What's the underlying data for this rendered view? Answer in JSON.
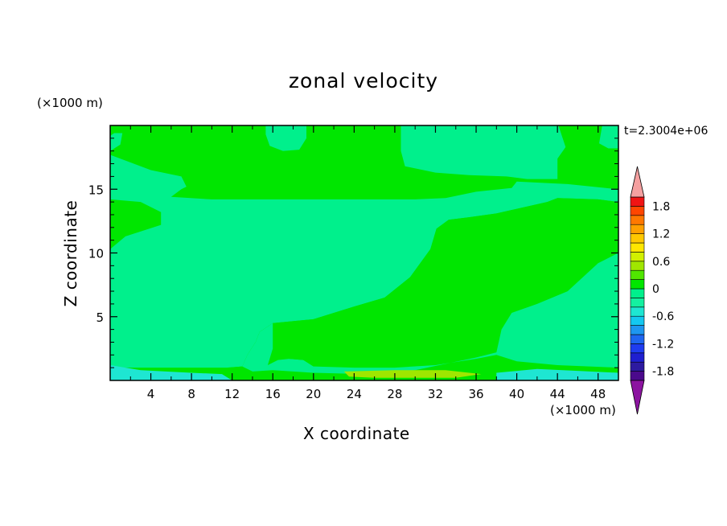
{
  "chart_data": {
    "type": "heatmap",
    "title": "zonal velocity",
    "xlabel": "X coordinate",
    "ylabel": "Z coordinate",
    "x_unit": "(×1000 m)",
    "y_unit": "(×1000 m)",
    "time_label": "t=2.3004e+06",
    "xlim": [
      0,
      50
    ],
    "ylim": [
      0,
      20
    ],
    "x_ticks": [
      4,
      8,
      12,
      16,
      20,
      24,
      28,
      32,
      36,
      40,
      44,
      48
    ],
    "y_ticks": [
      5,
      10,
      15
    ],
    "colorbar": {
      "levels": [
        -2.0,
        -1.8,
        -1.6,
        -1.4,
        -1.2,
        -1.0,
        -0.8,
        -0.6,
        -0.4,
        -0.2,
        0,
        0.2,
        0.4,
        0.6,
        0.8,
        1.0,
        1.2,
        1.4,
        1.6,
        1.8,
        2.0
      ],
      "colors": [
        "#4b0a8c",
        "#2d1aa0",
        "#1f1fd0",
        "#1e3cf0",
        "#1e66f0",
        "#1e96f0",
        "#14c8f0",
        "#1ee6d2",
        "#14f0a0",
        "#00f08c",
        "#00e600",
        "#50e600",
        "#a0e600",
        "#d2f000",
        "#ffe600",
        "#ffc800",
        "#ffa000",
        "#ff7800",
        "#ff4600",
        "#f01414"
      ],
      "under_color": "#8c14a0",
      "over_color": "#f5a0a0",
      "tick_labels": [
        "1.8",
        "1.2",
        "0.6",
        "0",
        "-0.6",
        "-1.2",
        "-1.8"
      ],
      "tick_values": [
        1.8,
        1.2,
        0.6,
        0,
        -0.6,
        -1.2,
        -1.8
      ]
    },
    "field_colors": {
      "positive_weak": "#00e600",
      "negative_weak": "#00f08c",
      "negative_mid": "#1ee6d2",
      "positive_mid": "#a0e600"
    },
    "regions": [
      {
        "value": "negative_weak",
        "boundary": [
          [
            0,
            19.2
          ],
          [
            0.4,
            19.4
          ],
          [
            1.2,
            19.4
          ],
          [
            1,
            18.5
          ],
          [
            0,
            18
          ]
        ]
      },
      {
        "value": "negative_weak",
        "boundary": [
          [
            15.3,
            20
          ],
          [
            19.3,
            20
          ],
          [
            19.3,
            19
          ],
          [
            18.6,
            18.1
          ],
          [
            17,
            18
          ],
          [
            15.7,
            18.4
          ],
          [
            15.3,
            19.3
          ]
        ]
      },
      {
        "value": "negative_weak",
        "boundary": [
          [
            28.6,
            20
          ],
          [
            44.1,
            20
          ],
          [
            44.8,
            18.3
          ],
          [
            44,
            17.4
          ],
          [
            44,
            15.8
          ],
          [
            41,
            15.8
          ],
          [
            39,
            16
          ],
          [
            35.3,
            16.1
          ],
          [
            32,
            16.3
          ],
          [
            29,
            16.8
          ],
          [
            28.6,
            18
          ]
        ]
      },
      {
        "value": "negative_weak",
        "boundary": [
          [
            48.4,
            20
          ],
          [
            48.1,
            18.6
          ],
          [
            49,
            18.2
          ],
          [
            50,
            18.2
          ],
          [
            50,
            20
          ]
        ]
      },
      {
        "value": "negative_weak",
        "boundary": [
          [
            0,
            17.7
          ],
          [
            2,
            17.1
          ],
          [
            4,
            16.5
          ],
          [
            7,
            16
          ],
          [
            7.5,
            15.2
          ],
          [
            7,
            15
          ],
          [
            6,
            14.4
          ],
          [
            10,
            14.2
          ],
          [
            30,
            14.2
          ],
          [
            33,
            14.3
          ],
          [
            36,
            14.8
          ],
          [
            39.5,
            15.1
          ],
          [
            40,
            15.6
          ],
          [
            45,
            15.4
          ],
          [
            50,
            15
          ],
          [
            50,
            14
          ],
          [
            48,
            14.2
          ],
          [
            44,
            14.3
          ],
          [
            43,
            14
          ],
          [
            38,
            13.1
          ],
          [
            35.3,
            12.8
          ],
          [
            33.3,
            12.6
          ],
          [
            32.1,
            11.9
          ],
          [
            31.5,
            10.3
          ],
          [
            29.5,
            8.1
          ],
          [
            27,
            6.5
          ],
          [
            24,
            5.8
          ],
          [
            20,
            4.8
          ],
          [
            16,
            4.5
          ],
          [
            14.7,
            3.8
          ],
          [
            14.3,
            3
          ],
          [
            13.5,
            2
          ],
          [
            13,
            1.1
          ],
          [
            11.5,
            1
          ],
          [
            3,
            1
          ],
          [
            0,
            1
          ],
          [
            0,
            10.3
          ],
          [
            1.5,
            11.3
          ],
          [
            5,
            12.2
          ],
          [
            5,
            13.2
          ],
          [
            3,
            14
          ],
          [
            0,
            14.2
          ]
        ]
      },
      {
        "value": "positive_weak",
        "boundary": [
          [
            11.5,
            1
          ],
          [
            13,
            1.1
          ],
          [
            13.5,
            2
          ],
          [
            14.3,
            3
          ],
          [
            14.7,
            3.8
          ],
          [
            16,
            4.5
          ],
          [
            20,
            4.8
          ],
          [
            24,
            5.8
          ],
          [
            27,
            6.5
          ],
          [
            29.5,
            8.1
          ],
          [
            31.5,
            10.3
          ],
          [
            32.1,
            11.9
          ],
          [
            33.3,
            12.6
          ],
          [
            35.3,
            12.8
          ],
          [
            38,
            13.1
          ],
          [
            43,
            14
          ],
          [
            44,
            14.3
          ],
          [
            48,
            14.2
          ],
          [
            50,
            14
          ],
          [
            50,
            10
          ],
          [
            48,
            9.2
          ],
          [
            45,
            7
          ],
          [
            42,
            6
          ],
          [
            39.5,
            5.3
          ],
          [
            38.5,
            4
          ],
          [
            38,
            2.2
          ],
          [
            36,
            1.8
          ],
          [
            30,
            0.8
          ],
          [
            25,
            0.5
          ],
          [
            20,
            0.6
          ],
          [
            16,
            0.8
          ],
          [
            14,
            0.7
          ]
        ]
      },
      {
        "value": "negative_weak",
        "boundary": [
          [
            16,
            4.5
          ],
          [
            14.7,
            3.8
          ],
          [
            14.3,
            3
          ],
          [
            13.5,
            2
          ],
          [
            13,
            1.1
          ],
          [
            14,
            0.7
          ],
          [
            16,
            0.8
          ],
          [
            20,
            0.6
          ],
          [
            25,
            0.5
          ],
          [
            30,
            0.8
          ],
          [
            36,
            1.8
          ],
          [
            38,
            2.2
          ],
          [
            38.5,
            4
          ],
          [
            39.5,
            5.3
          ],
          [
            42,
            6
          ],
          [
            45,
            7
          ],
          [
            48,
            9.2
          ],
          [
            50,
            10
          ],
          [
            50,
            1
          ],
          [
            44,
            1.2
          ],
          [
            40,
            1.5
          ],
          [
            38,
            2
          ],
          [
            36,
            1.7
          ],
          [
            32,
            1.2
          ],
          [
            28,
            1
          ],
          [
            24,
            1
          ],
          [
            20,
            1.1
          ],
          [
            19,
            1.6
          ],
          [
            17.6,
            1.7
          ],
          [
            16.5,
            1.6
          ],
          [
            15.5,
            1.2
          ],
          [
            16,
            2.5
          ]
        ]
      },
      {
        "value": "positive_weak",
        "boundary": [
          [
            17.6,
            1.7
          ],
          [
            19,
            1.6
          ],
          [
            20,
            1.1
          ],
          [
            20.5,
            1.5
          ],
          [
            20,
            2.2
          ],
          [
            18.6,
            2.3
          ],
          [
            17.7,
            2
          ]
        ]
      },
      {
        "value": "positive_mid",
        "boundary": [
          [
            23,
            0.7
          ],
          [
            28,
            0.8
          ],
          [
            33,
            0.8
          ],
          [
            36.5,
            0.5
          ],
          [
            34,
            0.2
          ],
          [
            26,
            0.2
          ],
          [
            23.5,
            0.3
          ]
        ]
      },
      {
        "value": "negative_mid",
        "boundary": [
          [
            0,
            1.2
          ],
          [
            3,
            0.8
          ],
          [
            8,
            0.6
          ],
          [
            11,
            0.5
          ],
          [
            12,
            0
          ],
          [
            0,
            0
          ]
        ]
      },
      {
        "value": "negative_mid",
        "boundary": [
          [
            38,
            0.6
          ],
          [
            42,
            0.9
          ],
          [
            50,
            0.6
          ],
          [
            50,
            0
          ],
          [
            38,
            0
          ]
        ]
      }
    ]
  }
}
